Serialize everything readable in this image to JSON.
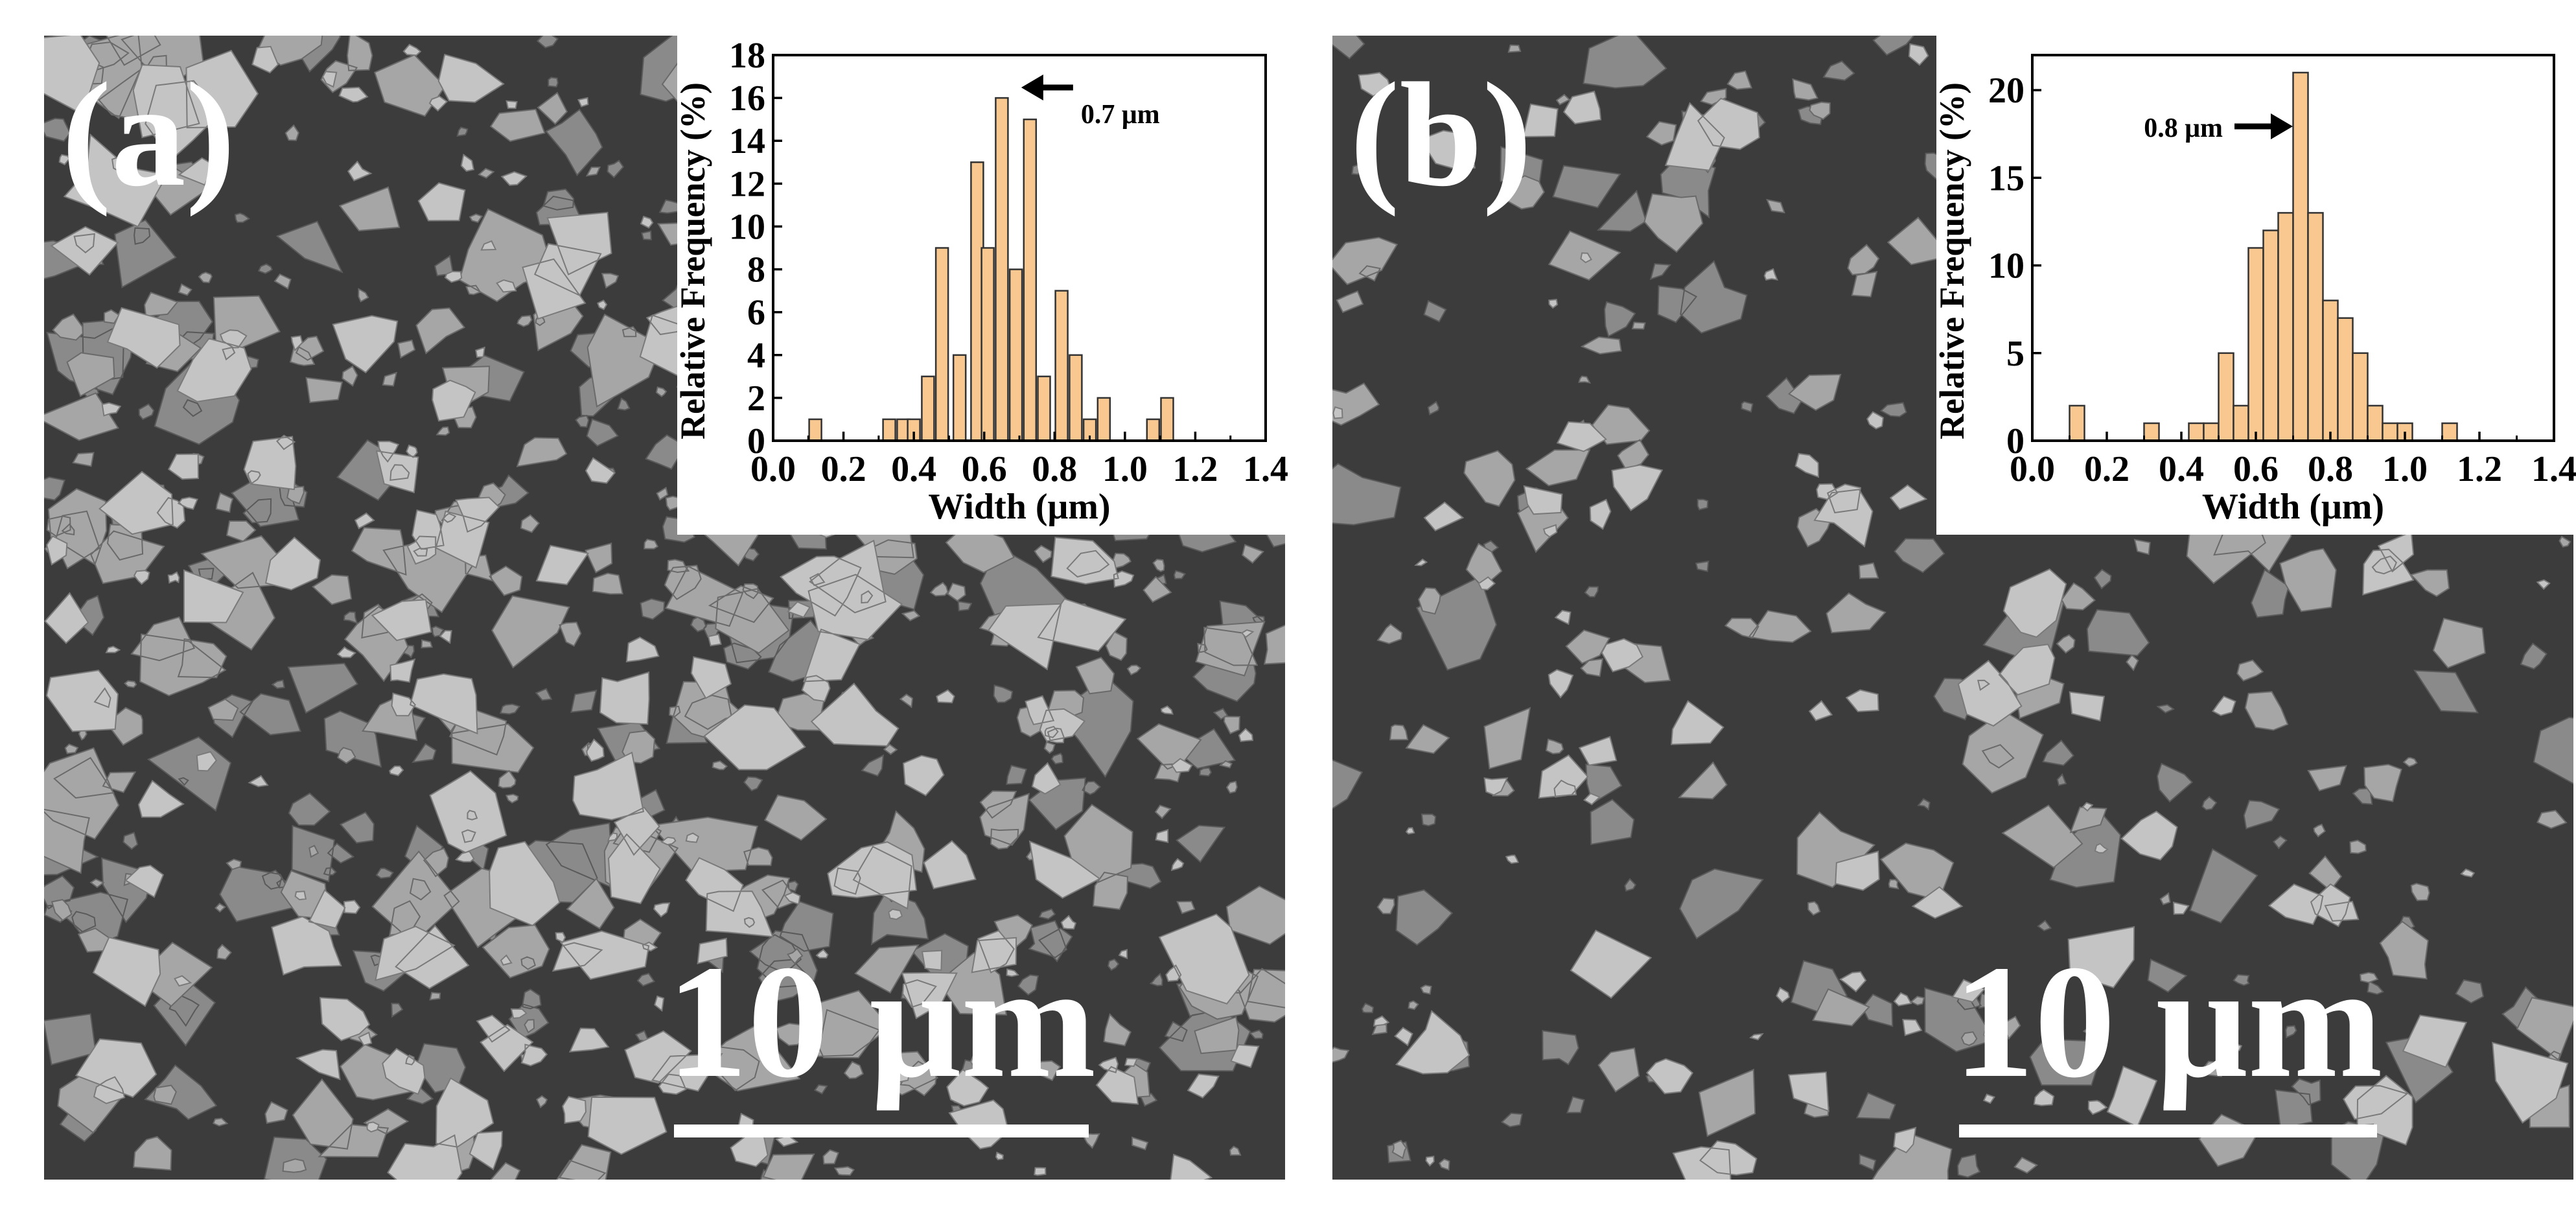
{
  "panels": [
    {
      "label": "(a)",
      "scale_bar_label": "10 μm",
      "image_description": "SEM micrograph of irregular flake-like particles, densely packed",
      "density": 0.58,
      "chart_data": {
        "type": "bar",
        "xlabel": "Width (μm)",
        "ylabel": "Relative Frequency (%)",
        "xlim": [
          0.0,
          1.4
        ],
        "ylim": [
          0,
          18
        ],
        "x_ticks": [
          "0.0",
          "0.2",
          "0.4",
          "0.6",
          "0.8",
          "1.0",
          "1.2",
          "1.4"
        ],
        "y_ticks": [
          "0",
          "2",
          "4",
          "6",
          "8",
          "10",
          "12",
          "14",
          "16",
          "18"
        ],
        "bin_width": 0.035,
        "x": [
          0.12,
          0.33,
          0.37,
          0.4,
          0.44,
          0.48,
          0.53,
          0.58,
          0.61,
          0.65,
          0.69,
          0.73,
          0.77,
          0.82,
          0.86,
          0.9,
          0.94,
          1.08,
          1.12
        ],
        "values": [
          1,
          1,
          1,
          1,
          3,
          9,
          4,
          13,
          9,
          16,
          8,
          15,
          3,
          7,
          4,
          1,
          2,
          1,
          2
        ],
        "bar_color": "#f8c890",
        "annotation": {
          "text": "0.7 μm",
          "arrow": "points-left-to-peak"
        },
        "grid": false
      }
    },
    {
      "label": "(b)",
      "scale_bar_label": "10 μm",
      "image_description": "SEM micrograph of irregular particles, more dispersed",
      "density": 0.42,
      "chart_data": {
        "type": "bar",
        "xlabel": "Width (μm)",
        "ylabel": "Relative Frequency (%)",
        "xlim": [
          0.0,
          1.4
        ],
        "ylim": [
          0,
          22
        ],
        "x_ticks": [
          "0.0",
          "0.2",
          "0.4",
          "0.6",
          "0.8",
          "1.0",
          "1.2",
          "1.4"
        ],
        "y_ticks": [
          "0",
          "5",
          "10",
          "15",
          "20"
        ],
        "bin_width": 0.04,
        "x": [
          0.12,
          0.32,
          0.44,
          0.48,
          0.52,
          0.56,
          0.6,
          0.64,
          0.68,
          0.72,
          0.76,
          0.8,
          0.84,
          0.88,
          0.92,
          0.96,
          1.0,
          1.12
        ],
        "values": [
          2,
          1,
          1,
          1,
          5,
          2,
          11,
          12,
          13,
          21,
          13,
          8,
          7,
          5,
          2,
          1,
          1,
          1
        ],
        "bar_color": "#f8c890",
        "annotation": {
          "text": "0.8 μm",
          "arrow": "points-right-to-peak"
        },
        "grid": false
      }
    }
  ]
}
